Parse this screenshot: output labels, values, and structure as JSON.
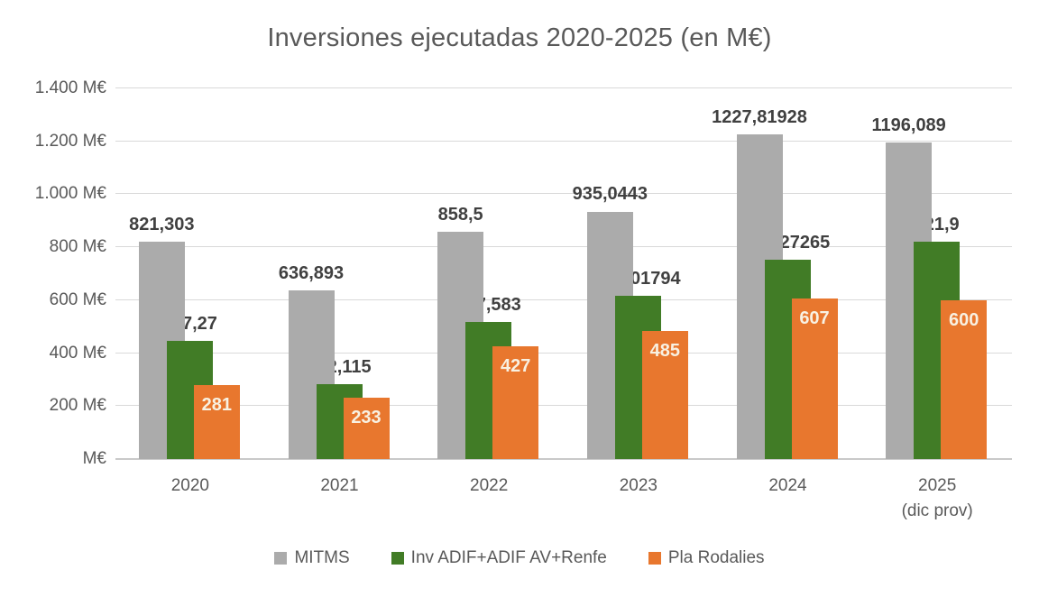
{
  "chart_data": {
    "type": "bar",
    "title": "Inversiones ejecutadas 2020-2025 (en M€)",
    "unit": "M€",
    "ylim": [
      0,
      1400
    ],
    "grid": true,
    "legend_position": "bottom",
    "y_ticks": [
      {
        "value": 1400,
        "label": "1.400 M€"
      },
      {
        "value": 1200,
        "label": "1.200 M€"
      },
      {
        "value": 1000,
        "label": "1.000 M€"
      },
      {
        "value": 800,
        "label": "800 M€"
      },
      {
        "value": 600,
        "label": "600 M€"
      },
      {
        "value": 400,
        "label": "400 M€"
      },
      {
        "value": 200,
        "label": "200 M€"
      },
      {
        "value": 0,
        "label": "M€"
      }
    ],
    "categories": [
      "2020",
      "2021",
      "2022",
      "2023",
      "2024",
      "2025"
    ],
    "category_sublabels": [
      "",
      "",
      "",
      "",
      "",
      "(dic prov)"
    ],
    "series": [
      {
        "name": "MITMS",
        "color": "#ABABAB",
        "label_position": "outside",
        "label_color": "#404040",
        "values": [
          821.303,
          636.893,
          858.5,
          935.0443,
          1227.81928,
          1196.089
        ],
        "labels": [
          "821,303",
          "636,893",
          "858,5",
          "935,0443",
          "1227,81928",
          "1196,089"
        ]
      },
      {
        "name": "Inv ADIF+ADIF AV+Renfe",
        "color": "#417C26",
        "label_position": "outside",
        "label_color": "#404040",
        "values": [
          447.27,
          282.115,
          517.583,
          617.01794,
          754.27265,
          821.9
        ],
        "labels": [
          "447,27",
          "282,115",
          "517,583",
          "617,01794",
          "754,27265",
          "821,9"
        ]
      },
      {
        "name": "Pla Rodalies",
        "color": "#E8772E",
        "label_position": "inside",
        "label_color": "#F8F1E2",
        "values": [
          281,
          233,
          427,
          485,
          607,
          600
        ],
        "labels": [
          "281",
          "233",
          "427",
          "485",
          "607",
          "600"
        ]
      }
    ]
  }
}
